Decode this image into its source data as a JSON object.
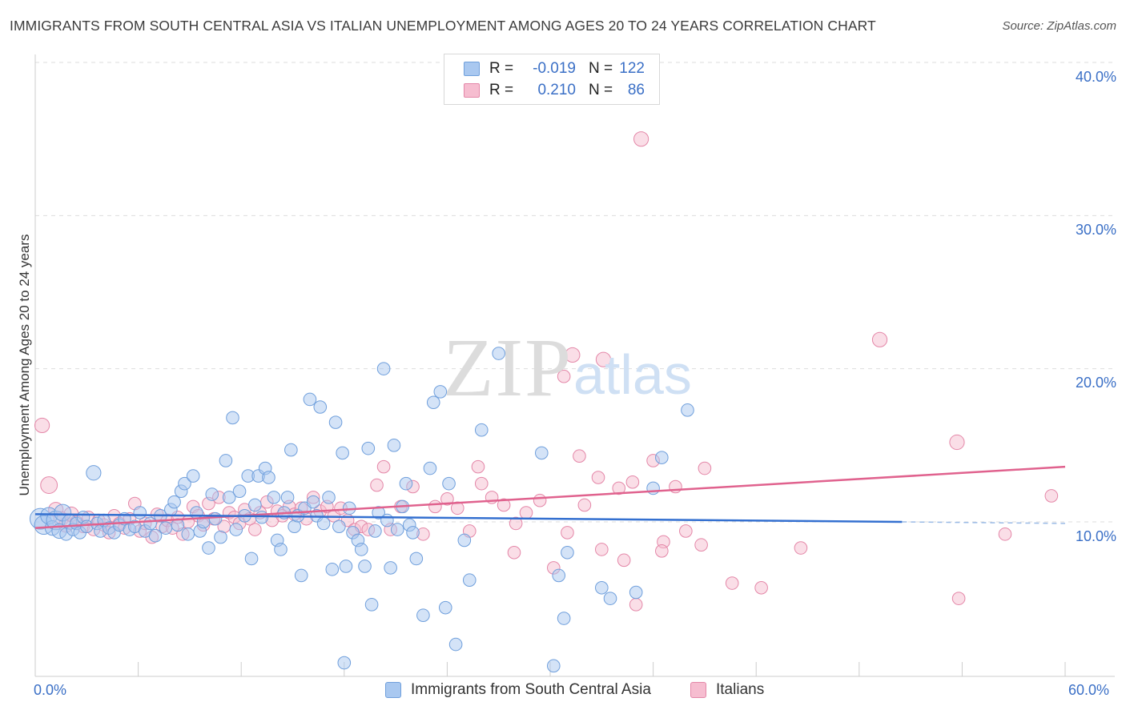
{
  "title": "IMMIGRANTS FROM SOUTH CENTRAL ASIA VS ITALIAN UNEMPLOYMENT AMONG AGES 20 TO 24 YEARS CORRELATION CHART",
  "source": "Source: ZipAtlas.com",
  "watermark": {
    "zip": "ZIP",
    "atlas": "atlas"
  },
  "legend_top": {
    "rows": [
      {
        "r_label": "R =",
        "r_value": "-0.019",
        "n_label": "N =",
        "n_value": "122"
      },
      {
        "r_label": "R =",
        "r_value": "0.210",
        "n_label": "N =",
        "n_value": "86"
      }
    ]
  },
  "legend_bottom": [
    "Immigrants from South Central Asia",
    "Italians"
  ],
  "colors": {
    "blue_fill": "#a9c8f0",
    "blue_stroke": "#6f9fdc",
    "blue_line": "#3470d0",
    "pink_fill": "#f6bdd0",
    "pink_stroke": "#e487a8",
    "pink_line": "#e0628e",
    "grid": "#dddddd",
    "tick_label": "#3a6fc6"
  },
  "chart_data": {
    "type": "scatter",
    "title": "IMMIGRANTS FROM SOUTH CENTRAL ASIA VS ITALIAN UNEMPLOYMENT AMONG AGES 20 TO 24 YEARS CORRELATION CHART",
    "xlabel": "",
    "ylabel": "Unemployment Among Ages 20 to 24 years",
    "xlim": [
      0,
      60
    ],
    "ylim": [
      0,
      42
    ],
    "x_tick_labels": [
      "0.0%",
      "60.0%"
    ],
    "y_tick_labels": [
      "10.0%",
      "20.0%",
      "30.0%",
      "40.0%"
    ],
    "y_ticks": [
      10,
      20,
      30,
      40
    ],
    "grid": true,
    "legend_position": "top-center",
    "series": [
      {
        "name": "Immigrants from South Central Asia",
        "R": -0.019,
        "N": 122,
        "trend": {
          "x0": 0,
          "y0": 10.5,
          "x1": 50.5,
          "y1": 10.0,
          "dash_to": 60,
          "dash_y": 9.9
        },
        "points": [
          [
            0.3,
            10.2,
            10
          ],
          [
            0.5,
            9.8,
            9
          ],
          [
            0.8,
            10.4,
            8
          ],
          [
            1.0,
            9.6,
            7
          ],
          [
            1.2,
            10.1,
            9
          ],
          [
            1.4,
            9.4,
            7
          ],
          [
            1.6,
            10.6,
            8
          ],
          [
            1.8,
            9.2,
            6
          ],
          [
            2.0,
            10.0,
            7
          ],
          [
            2.2,
            9.5,
            6
          ],
          [
            2.4,
            9.9,
            6
          ],
          [
            2.6,
            9.3,
            6
          ],
          [
            2.8,
            10.3,
            6
          ],
          [
            3.0,
            9.7,
            6
          ],
          [
            3.4,
            13.2,
            7
          ],
          [
            3.6,
            9.9,
            6
          ],
          [
            3.8,
            9.4,
            6
          ],
          [
            4.0,
            10.1,
            6
          ],
          [
            4.3,
            9.6,
            6
          ],
          [
            4.6,
            9.3,
            6
          ],
          [
            4.9,
            9.8,
            6
          ],
          [
            5.2,
            10.2,
            6
          ],
          [
            5.5,
            9.5,
            6
          ],
          [
            5.8,
            9.7,
            6
          ],
          [
            6.1,
            10.6,
            6
          ],
          [
            6.4,
            9.4,
            6
          ],
          [
            6.7,
            9.9,
            6
          ],
          [
            7.0,
            9.1,
            6
          ],
          [
            7.3,
            10.4,
            6
          ],
          [
            7.6,
            9.6,
            6
          ],
          [
            7.9,
            10.8,
            6
          ],
          [
            8.1,
            11.3,
            6
          ],
          [
            8.3,
            9.8,
            6
          ],
          [
            8.5,
            12.0,
            6
          ],
          [
            8.7,
            12.5,
            6
          ],
          [
            8.9,
            9.2,
            6
          ],
          [
            9.2,
            13.0,
            6
          ],
          [
            9.4,
            10.6,
            6
          ],
          [
            9.6,
            9.4,
            6
          ],
          [
            9.8,
            10.0,
            6
          ],
          [
            10.1,
            8.3,
            6
          ],
          [
            10.3,
            11.8,
            6
          ],
          [
            10.5,
            10.2,
            6
          ],
          [
            10.8,
            9.0,
            6
          ],
          [
            11.1,
            14.0,
            6
          ],
          [
            11.3,
            11.6,
            6
          ],
          [
            11.5,
            16.8,
            6
          ],
          [
            11.7,
            9.5,
            6
          ],
          [
            11.9,
            12.0,
            6
          ],
          [
            12.2,
            10.4,
            6
          ],
          [
            12.4,
            13.0,
            6
          ],
          [
            12.6,
            7.6,
            6
          ],
          [
            12.8,
            11.1,
            6
          ],
          [
            13.0,
            13.0,
            6
          ],
          [
            13.2,
            10.3,
            6
          ],
          [
            13.4,
            13.5,
            6
          ],
          [
            13.6,
            12.9,
            6
          ],
          [
            13.9,
            11.6,
            6
          ],
          [
            14.1,
            8.8,
            6
          ],
          [
            14.3,
            8.2,
            6
          ],
          [
            14.5,
            10.6,
            6
          ],
          [
            14.7,
            11.6,
            6
          ],
          [
            14.9,
            14.7,
            6
          ],
          [
            15.1,
            9.7,
            6
          ],
          [
            15.3,
            10.4,
            6
          ],
          [
            15.5,
            6.5,
            6
          ],
          [
            15.7,
            10.9,
            6
          ],
          [
            16.0,
            18.0,
            6
          ],
          [
            16.2,
            11.3,
            6
          ],
          [
            16.4,
            10.4,
            6
          ],
          [
            16.6,
            17.5,
            6
          ],
          [
            16.8,
            9.9,
            6
          ],
          [
            17.1,
            11.6,
            6
          ],
          [
            17.3,
            6.9,
            6
          ],
          [
            17.5,
            16.5,
            6
          ],
          [
            17.7,
            9.7,
            6
          ],
          [
            17.9,
            14.5,
            6
          ],
          [
            18.1,
            7.1,
            6
          ],
          [
            18.3,
            10.9,
            6
          ],
          [
            18.5,
            9.3,
            6
          ],
          [
            18.8,
            8.8,
            6
          ],
          [
            19.0,
            8.2,
            6
          ],
          [
            19.2,
            7.1,
            6
          ],
          [
            19.4,
            14.8,
            6
          ],
          [
            19.6,
            4.6,
            6
          ],
          [
            19.8,
            9.4,
            6
          ],
          [
            20.0,
            10.6,
            6
          ],
          [
            20.3,
            20.0,
            6
          ],
          [
            20.5,
            10.1,
            6
          ],
          [
            20.7,
            7.0,
            6
          ],
          [
            20.9,
            15.0,
            6
          ],
          [
            21.1,
            9.5,
            6
          ],
          [
            21.4,
            11.0,
            6
          ],
          [
            21.6,
            12.5,
            6
          ],
          [
            21.8,
            9.8,
            6
          ],
          [
            22.0,
            9.3,
            6
          ],
          [
            22.2,
            7.6,
            6
          ],
          [
            22.6,
            3.9,
            6
          ],
          [
            23.0,
            13.5,
            6
          ],
          [
            23.2,
            17.8,
            6
          ],
          [
            23.6,
            18.5,
            6
          ],
          [
            23.9,
            4.4,
            6
          ],
          [
            24.1,
            12.5,
            6
          ],
          [
            24.5,
            2.0,
            6
          ],
          [
            25.0,
            8.8,
            6
          ],
          [
            25.3,
            6.2,
            6
          ],
          [
            26.0,
            16.0,
            6
          ],
          [
            27.0,
            21.0,
            6
          ],
          [
            29.5,
            14.5,
            6
          ],
          [
            30.5,
            6.5,
            6
          ],
          [
            30.8,
            3.7,
            6
          ],
          [
            31.0,
            8.0,
            6
          ],
          [
            33.0,
            5.7,
            6
          ],
          [
            33.5,
            5.0,
            6
          ],
          [
            35.0,
            5.4,
            6
          ],
          [
            36.0,
            12.2,
            6
          ],
          [
            38.0,
            17.3,
            6
          ],
          [
            18.0,
            0.8,
            6
          ],
          [
            30.2,
            0.6,
            6
          ],
          [
            36.5,
            14.2,
            6
          ]
        ]
      },
      {
        "name": "Italians",
        "R": 0.21,
        "N": 86,
        "trend": {
          "x0": 0,
          "y0": 9.6,
          "x1": 60,
          "y1": 13.6
        },
        "points": [
          [
            0.4,
            16.3,
            7
          ],
          [
            0.8,
            12.4,
            8
          ],
          [
            1.2,
            10.8,
            7
          ],
          [
            1.5,
            10.2,
            7
          ],
          [
            1.8,
            9.8,
            7
          ],
          [
            2.1,
            10.5,
            7
          ],
          [
            2.4,
            10.0,
            6
          ],
          [
            2.8,
            9.7,
            6
          ],
          [
            3.1,
            10.3,
            6
          ],
          [
            3.4,
            9.5,
            6
          ],
          [
            3.7,
            10.1,
            6
          ],
          [
            4.0,
            9.8,
            6
          ],
          [
            4.3,
            9.3,
            6
          ],
          [
            4.6,
            10.4,
            6
          ],
          [
            4.9,
            9.9,
            6
          ],
          [
            5.2,
            9.6,
            6
          ],
          [
            5.5,
            10.2,
            6
          ],
          [
            5.8,
            11.2,
            6
          ],
          [
            6.1,
            9.4,
            6
          ],
          [
            6.4,
            9.9,
            6
          ],
          [
            6.8,
            9.0,
            6
          ],
          [
            7.1,
            10.5,
            6
          ],
          [
            7.4,
            9.7,
            6
          ],
          [
            7.7,
            10.1,
            6
          ],
          [
            8.0,
            9.6,
            6
          ],
          [
            8.3,
            10.3,
            6
          ],
          [
            8.6,
            9.2,
            6
          ],
          [
            8.9,
            10.0,
            6
          ],
          [
            9.2,
            11.0,
            6
          ],
          [
            9.5,
            10.4,
            6
          ],
          [
            9.8,
            9.8,
            6
          ],
          [
            10.1,
            11.2,
            6
          ],
          [
            10.4,
            10.2,
            6
          ],
          [
            10.7,
            11.6,
            6
          ],
          [
            11.0,
            9.7,
            6
          ],
          [
            11.3,
            10.6,
            6
          ],
          [
            11.6,
            10.3,
            6
          ],
          [
            11.9,
            9.9,
            6
          ],
          [
            12.2,
            10.8,
            6
          ],
          [
            12.5,
            10.2,
            6
          ],
          [
            12.8,
            9.5,
            6
          ],
          [
            13.1,
            10.6,
            6
          ],
          [
            13.5,
            11.3,
            6
          ],
          [
            13.8,
            10.1,
            6
          ],
          [
            14.1,
            10.7,
            6
          ],
          [
            14.4,
            10.4,
            6
          ],
          [
            14.8,
            11.0,
            6
          ],
          [
            15.1,
            10.5,
            6
          ],
          [
            15.5,
            10.9,
            6
          ],
          [
            15.8,
            10.2,
            6
          ],
          [
            16.2,
            11.6,
            6
          ],
          [
            16.6,
            10.7,
            6
          ],
          [
            17.0,
            11.0,
            6
          ],
          [
            17.4,
            10.4,
            6
          ],
          [
            17.8,
            10.9,
            6
          ],
          [
            18.2,
            10.1,
            6
          ],
          [
            18.6,
            9.5,
            6
          ],
          [
            19.0,
            9.7,
            6
          ],
          [
            19.4,
            9.5,
            6
          ],
          [
            19.9,
            12.4,
            6
          ],
          [
            20.3,
            13.6,
            6
          ],
          [
            20.7,
            9.5,
            6
          ],
          [
            21.3,
            11.0,
            6
          ],
          [
            22.0,
            12.3,
            6
          ],
          [
            22.6,
            9.2,
            6
          ],
          [
            23.3,
            11.0,
            6
          ],
          [
            24.0,
            11.5,
            6
          ],
          [
            24.6,
            10.9,
            6
          ],
          [
            25.3,
            9.4,
            6
          ],
          [
            26.0,
            12.5,
            6
          ],
          [
            26.6,
            11.6,
            6
          ],
          [
            27.3,
            11.1,
            6
          ],
          [
            27.9,
            8.0,
            6
          ],
          [
            28.6,
            10.6,
            6
          ],
          [
            29.4,
            11.4,
            6
          ],
          [
            30.2,
            7.0,
            6
          ],
          [
            31.0,
            9.3,
            6
          ],
          [
            32.0,
            11.1,
            6
          ],
          [
            33.0,
            8.2,
            6
          ],
          [
            34.0,
            12.2,
            6
          ],
          [
            35.0,
            4.6,
            6
          ],
          [
            36.0,
            14.0,
            6
          ],
          [
            36.6,
            8.7,
            6
          ],
          [
            37.3,
            12.3,
            6
          ],
          [
            39.0,
            13.5,
            6
          ],
          [
            40.6,
            6.0,
            6
          ],
          [
            42.3,
            5.7,
            6
          ],
          [
            44.6,
            8.3,
            6
          ],
          [
            34.3,
            7.5,
            6
          ],
          [
            31.7,
            14.3,
            6
          ],
          [
            32.8,
            12.9,
            6
          ],
          [
            25.8,
            13.6,
            6
          ],
          [
            30.8,
            19.5,
            6
          ],
          [
            34.8,
            12.6,
            6
          ],
          [
            36.5,
            8.1,
            6
          ],
          [
            28.0,
            9.9,
            6
          ],
          [
            37.9,
            9.4,
            6
          ],
          [
            38.8,
            8.5,
            6
          ],
          [
            53.7,
            15.2,
            7
          ],
          [
            53.8,
            5.0,
            6
          ],
          [
            56.5,
            9.2,
            6
          ],
          [
            59.2,
            11.7,
            6
          ]
        ]
      }
    ],
    "extra_points": {
      "Italians": [
        [
          35.3,
          35.0,
          7
        ],
        [
          49.2,
          21.9,
          7
        ],
        [
          33.1,
          20.6,
          7
        ],
        [
          31.3,
          20.9,
          7
        ]
      ]
    }
  }
}
